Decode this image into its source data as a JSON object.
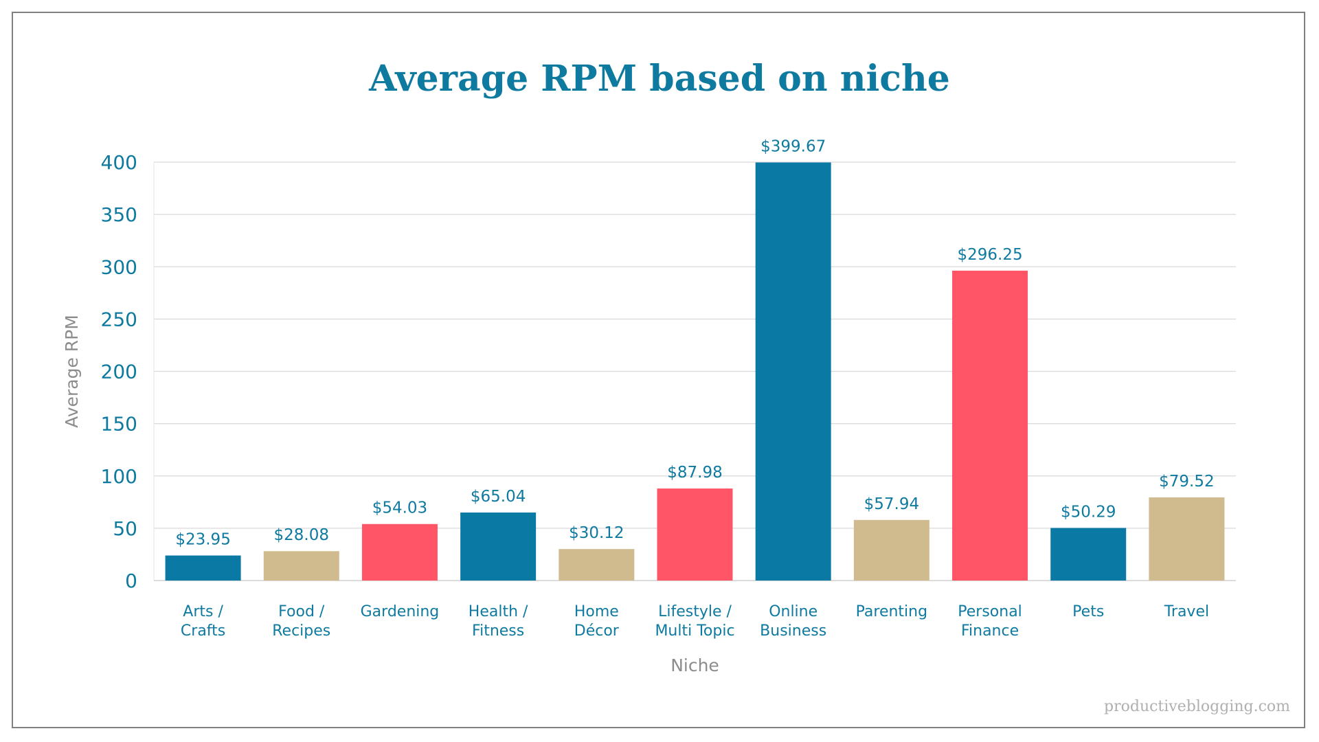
{
  "chart_data": {
    "type": "bar",
    "title": "Average RPM based on niche",
    "xlabel": "Niche",
    "ylabel": "Average RPM",
    "ylim": [
      0,
      400
    ],
    "yticks": [
      "0",
      "50",
      "100",
      "150",
      "200",
      "250",
      "300",
      "350",
      "400"
    ],
    "grid": true,
    "categories": [
      [
        "Arts /",
        "Crafts"
      ],
      [
        "Food /",
        "Recipes"
      ],
      [
        "Gardening"
      ],
      [
        "Health /",
        "Fitness"
      ],
      [
        "Home",
        "Décor"
      ],
      [
        "Lifestyle /",
        "Multi Topic"
      ],
      [
        "Online",
        "Business"
      ],
      [
        "Parenting"
      ],
      [
        "Personal",
        "Finance"
      ],
      [
        "Pets"
      ],
      [
        "Travel"
      ]
    ],
    "values": [
      23.95,
      28.08,
      54.03,
      65.04,
      30.12,
      87.98,
      399.67,
      57.94,
      296.25,
      50.29,
      79.52
    ],
    "data_labels": [
      "$23.95",
      "$28.08",
      "$54.03",
      "$65.04",
      "$30.12",
      "$87.98",
      "$399.67",
      "$57.94",
      "$296.25",
      "$50.29",
      "$79.52"
    ],
    "bar_colors": [
      "#0a7aa5",
      "#cfbb8e",
      "#ff5566",
      "#0a7aa5",
      "#cfbb8e",
      "#ff5566",
      "#0a7aa5",
      "#cfbb8e",
      "#ff5566",
      "#0a7aa5",
      "#cfbb8e"
    ]
  },
  "colors": {
    "text_accent": "#0f7aa0",
    "axis_title": "#8c8c8c",
    "grid": "#d9d9d9"
  },
  "watermark": "productiveblogging.com"
}
